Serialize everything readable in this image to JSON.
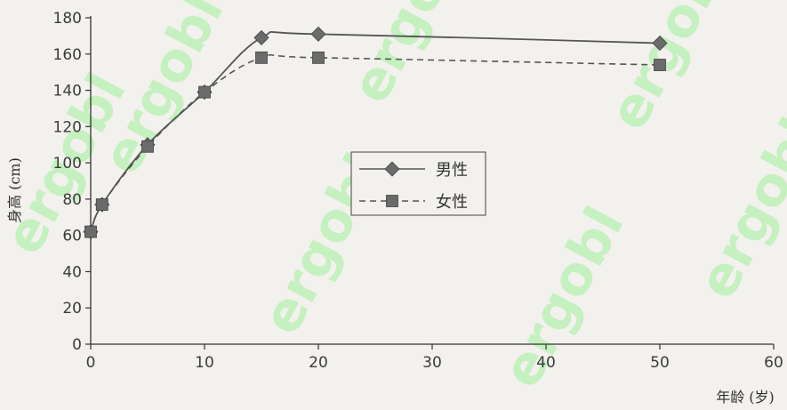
{
  "watermark": {
    "text": "ergobl",
    "color": "#b6f0b0"
  },
  "colors": {
    "line": "#555555",
    "marker": "#6b6b6b",
    "axis": "#333333"
  },
  "chart_data": {
    "type": "line",
    "title": "",
    "xlabel": "年龄 (岁)",
    "ylabel": "身高 (cm)",
    "xlim": [
      0,
      60
    ],
    "ylim": [
      0,
      180
    ],
    "xticks": [
      0,
      10,
      20,
      30,
      40,
      50,
      60
    ],
    "yticks": [
      0,
      20,
      40,
      60,
      80,
      100,
      120,
      140,
      160,
      180
    ],
    "grid": false,
    "legend_position": "center",
    "series": [
      {
        "name": "男性",
        "style": "solid",
        "marker": "diamond",
        "x": [
          0,
          1,
          5,
          10,
          15,
          20,
          50
        ],
        "y": [
          62,
          77,
          110,
          139,
          169,
          171,
          166
        ]
      },
      {
        "name": "女性",
        "style": "dashed",
        "marker": "square",
        "x": [
          0,
          1,
          5,
          10,
          15,
          20,
          50
        ],
        "y": [
          62,
          77,
          109,
          139,
          158,
          158,
          154
        ]
      }
    ]
  }
}
